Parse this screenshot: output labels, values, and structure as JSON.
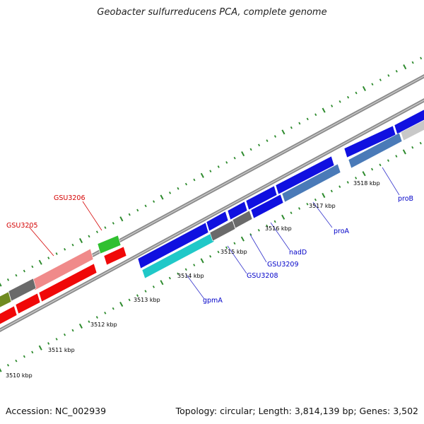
{
  "title": "Geobacter sulfurreducens PCA, complete genome",
  "footer": {
    "accession": "Accession: NC_002939",
    "summary": "Topology: circular; Length: 3,814,139 bp; Genes: 3,502"
  },
  "colors": {
    "tick": "#2e8b2e",
    "backbone": "#8c8c8c",
    "highlight_label": "#d40000",
    "gene_label": "#0000c8",
    "leader_red": "#d40000",
    "leader_blue": "#3333cc"
  },
  "tick_labels": [
    "3510 kbp",
    "3511 kbp",
    "3512 kbp",
    "3513 kbp",
    "3514 kbp",
    "3515 kbp",
    "3516 kbp",
    "3517 kbp",
    "3518 kbp"
  ],
  "gene_labels": {
    "GSU3205": "GSU3205",
    "GSU3206": "GSU3206",
    "gpmA": "gpmA",
    "GSU3208": "GSU3208",
    "GSU3209": "GSU3209",
    "nadD": "nadD",
    "proA": "proA",
    "proB": "proB"
  }
}
